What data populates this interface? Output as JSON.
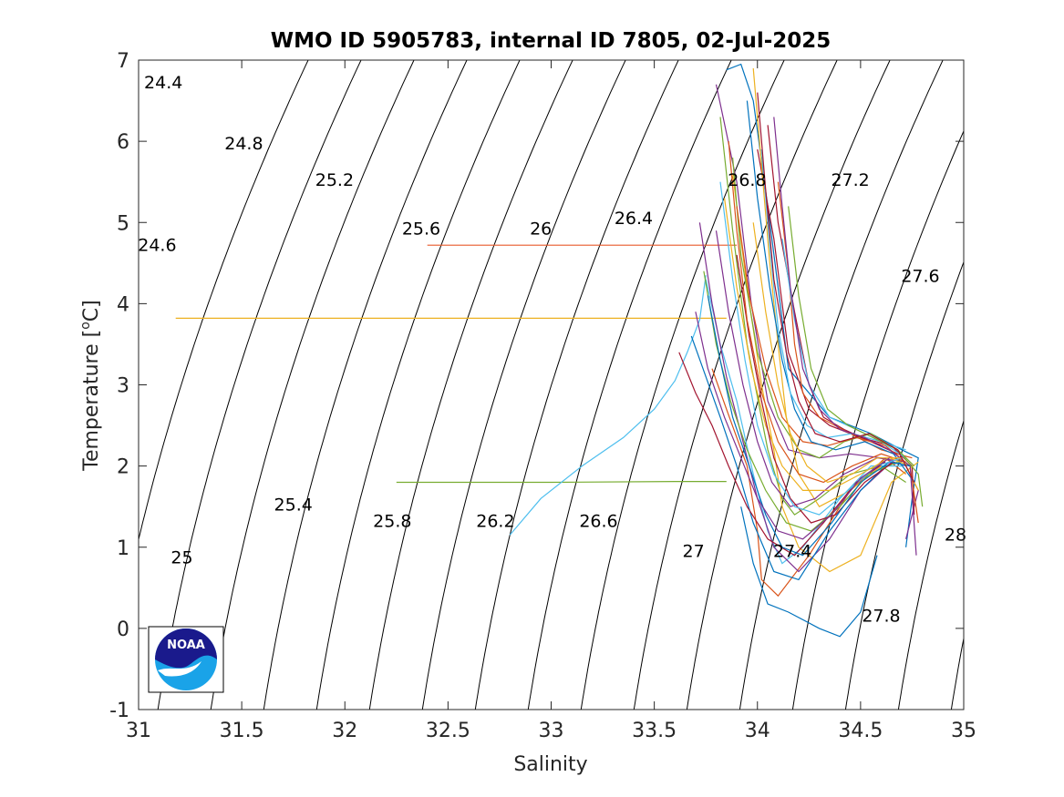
{
  "chart_data": {
    "type": "line",
    "title": "WMO ID 5905783, internal ID 7805, 02-Jul-2025",
    "xlabel": "Salinity",
    "ylabel_main": "Temperature [",
    "ylabel_sup": "o",
    "ylabel_end": "C]",
    "xlim": [
      31,
      35
    ],
    "ylim": [
      -1,
      7
    ],
    "xticks": [
      31,
      31.5,
      32,
      32.5,
      33,
      33.5,
      34,
      34.5,
      35
    ],
    "xtick_labels": [
      "31",
      "31.5",
      "32",
      "32.5",
      "33",
      "33.5",
      "34",
      "34.5",
      "35"
    ],
    "yticks": [
      -1,
      0,
      1,
      2,
      3,
      4,
      5,
      6,
      7
    ],
    "ytick_labels": [
      "-1",
      "0",
      "1",
      "2",
      "3",
      "4",
      "5",
      "6",
      "7"
    ],
    "grid": false,
    "legend": "none",
    "isopycnals": {
      "description": "sigma-theta density contours",
      "values": [
        24.4,
        24.6,
        24.8,
        25,
        25.2,
        25.4,
        25.6,
        25.8,
        26,
        26.2,
        26.4,
        26.6,
        26.8,
        27,
        27.2,
        27.4,
        27.6,
        27.8,
        28
      ],
      "label_texts": [
        "24.4",
        "24.6",
        "24.8",
        "25",
        "25.2",
        "25.4",
        "25.6",
        "25.8",
        "26",
        "26.2",
        "26.4",
        "26.6",
        "26.8",
        "27",
        "27.2",
        "27.4",
        "27.6",
        "27.8",
        "28"
      ],
      "label_points": [
        {
          "S": 31.12,
          "T": 6.65
        },
        {
          "S": 31.09,
          "T": 4.65
        },
        {
          "S": 31.51,
          "T": 5.9
        },
        {
          "S": 31.21,
          "T": 0.8
        },
        {
          "S": 31.95,
          "T": 5.45
        },
        {
          "S": 31.75,
          "T": 1.45
        },
        {
          "S": 32.37,
          "T": 4.85
        },
        {
          "S": 32.23,
          "T": 1.25
        },
        {
          "S": 32.95,
          "T": 4.85
        },
        {
          "S": 32.73,
          "T": 1.25
        },
        {
          "S": 33.4,
          "T": 4.98
        },
        {
          "S": 33.23,
          "T": 1.25
        },
        {
          "S": 33.95,
          "T": 5.45
        },
        {
          "S": 33.69,
          "T": 0.88
        },
        {
          "S": 34.45,
          "T": 5.45
        },
        {
          "S": 34.17,
          "T": 0.88
        },
        {
          "S": 34.79,
          "T": 4.27
        },
        {
          "S": 34.6,
          "T": 0.08
        },
        {
          "S": 34.96,
          "T": 1.08
        }
      ],
      "line_color": "#000000"
    },
    "series": [
      {
        "color": "#e85a2a",
        "x": [
          32.4,
          33.0,
          33.5,
          33.82,
          33.9
        ],
        "y": [
          4.72,
          4.72,
          4.72,
          4.72,
          4.72
        ]
      },
      {
        "color": "#edb120",
        "x": [
          31.18,
          32.0,
          33.0,
          33.7,
          33.85
        ],
        "y": [
          3.82,
          3.82,
          3.82,
          3.82,
          3.82
        ]
      },
      {
        "color": "#77ac30",
        "x": [
          32.25,
          33.0,
          33.6,
          33.85
        ],
        "y": [
          1.8,
          1.8,
          1.81,
          1.81
        ]
      },
      {
        "color": "#4dbeee",
        "x": [
          32.8,
          32.95,
          33.15,
          33.35,
          33.5,
          33.6,
          33.66,
          33.72,
          33.75
        ],
        "y": [
          1.15,
          1.6,
          2.0,
          2.35,
          2.7,
          3.05,
          3.4,
          3.8,
          4.35
        ]
      },
      {
        "color": "#0072bd",
        "x": [
          33.85,
          33.92,
          33.98,
          34.05,
          34.15,
          34.35,
          34.55,
          34.7,
          34.78,
          34.75,
          34.72
        ],
        "y": [
          6.88,
          6.95,
          6.5,
          5.2,
          3.2,
          2.6,
          2.4,
          2.2,
          2.1,
          1.6,
          1.0
        ]
      },
      {
        "color": "#7e2f8e",
        "x": [
          33.8,
          33.9,
          33.97,
          34.05,
          34.15,
          34.3,
          34.45,
          34.6,
          34.72,
          34.78,
          34.72
        ],
        "y": [
          6.7,
          5.5,
          4.0,
          2.8,
          2.2,
          2.1,
          2.15,
          2.1,
          2.0,
          1.7,
          1.1
        ]
      },
      {
        "color": "#a2142f",
        "x": [
          34.0,
          34.08,
          34.15,
          34.25,
          34.35,
          34.5,
          34.65,
          34.75,
          34.76
        ],
        "y": [
          5.9,
          4.8,
          3.4,
          2.7,
          2.5,
          2.35,
          2.25,
          2.0,
          1.4
        ]
      },
      {
        "color": "#d95319",
        "x": [
          33.78,
          33.85,
          33.95,
          34.0,
          34.02,
          34.1,
          34.25,
          34.45,
          34.62,
          34.72
        ],
        "y": [
          3.2,
          2.7,
          2.0,
          1.2,
          0.6,
          0.4,
          0.9,
          1.7,
          2.1,
          1.9
        ]
      },
      {
        "color": "#0072bd",
        "x": [
          33.92,
          33.98,
          34.05,
          34.15,
          34.3,
          34.4,
          34.5,
          34.58
        ],
        "y": [
          1.5,
          0.8,
          0.3,
          0.2,
          0.0,
          -0.1,
          0.2,
          0.9
        ]
      },
      {
        "color": "#77ac30",
        "x": [
          33.82,
          33.88,
          33.95,
          34.05,
          34.12,
          34.18,
          34.3,
          34.45,
          34.6,
          34.72
        ],
        "y": [
          6.3,
          4.9,
          3.5,
          2.2,
          1.6,
          1.4,
          1.6,
          1.9,
          2.0,
          1.8
        ]
      },
      {
        "color": "#4dbeee",
        "x": [
          33.75,
          33.82,
          33.9,
          33.98,
          34.05,
          34.12,
          34.22,
          34.4,
          34.55,
          34.7
        ],
        "y": [
          4.3,
          3.5,
          2.8,
          1.9,
          1.2,
          0.8,
          1.0,
          1.6,
          2.0,
          2.0
        ]
      },
      {
        "color": "#edb120",
        "x": [
          33.88,
          33.95,
          34.02,
          34.08,
          34.12,
          34.2,
          34.35,
          34.5,
          34.65,
          34.78
        ],
        "y": [
          5.6,
          4.2,
          3.0,
          2.2,
          1.5,
          1.0,
          0.7,
          0.9,
          1.8,
          2.05
        ]
      },
      {
        "color": "#7e2f8e",
        "x": [
          33.72,
          33.78,
          33.85,
          33.92,
          34.0,
          34.08,
          34.2,
          34.35,
          34.5,
          34.65
        ],
        "y": [
          5.0,
          4.0,
          3.1,
          2.4,
          1.6,
          1.0,
          0.7,
          1.1,
          1.7,
          2.05
        ]
      },
      {
        "color": "#a2142f",
        "x": [
          34.05,
          34.1,
          34.18,
          34.25,
          34.32,
          34.42,
          34.55,
          34.68
        ],
        "y": [
          6.2,
          5.0,
          3.9,
          3.0,
          2.6,
          2.45,
          2.3,
          2.15
        ]
      },
      {
        "color": "#d95319",
        "x": [
          34.1,
          34.15,
          34.18,
          34.22,
          34.3,
          34.45,
          34.6,
          34.75
        ],
        "y": [
          5.5,
          4.4,
          3.5,
          2.9,
          2.6,
          2.4,
          2.2,
          2.1
        ]
      },
      {
        "color": "#0072bd",
        "x": [
          33.68,
          33.75,
          33.82,
          33.9,
          33.98,
          34.08,
          34.2,
          34.35,
          34.5,
          34.62,
          34.7
        ],
        "y": [
          3.6,
          3.1,
          2.6,
          2.0,
          1.3,
          0.7,
          0.6,
          1.2,
          1.7,
          2.0,
          2.05
        ]
      },
      {
        "color": "#77ac30",
        "x": [
          33.88,
          33.92,
          34.0,
          34.1,
          34.2,
          34.3,
          34.42,
          34.55,
          34.68,
          34.78,
          34.8
        ],
        "y": [
          5.8,
          4.6,
          3.4,
          2.6,
          2.2,
          2.1,
          2.3,
          2.4,
          2.2,
          1.9,
          1.5
        ]
      },
      {
        "color": "#4dbeee",
        "x": [
          34.12,
          34.18,
          34.25,
          34.35,
          34.48,
          34.6,
          34.72
        ],
        "y": [
          4.8,
          3.8,
          3.0,
          2.6,
          2.45,
          2.3,
          2.2
        ]
      },
      {
        "color": "#edb120",
        "x": [
          33.98,
          34.02,
          34.06,
          34.1,
          34.14,
          34.2,
          34.3,
          34.45,
          34.6
        ],
        "y": [
          6.9,
          5.7,
          4.5,
          3.5,
          2.6,
          1.9,
          1.5,
          1.7,
          2.0
        ]
      },
      {
        "color": "#7e2f8e",
        "x": [
          33.8,
          33.86,
          33.93,
          34.0,
          34.07,
          34.16,
          34.28,
          34.42,
          34.58,
          34.72
        ],
        "y": [
          4.9,
          3.9,
          3.0,
          2.3,
          1.8,
          1.5,
          1.6,
          1.9,
          2.1,
          2.05
        ]
      },
      {
        "color": "#a2142f",
        "x": [
          33.62,
          33.7,
          33.78,
          33.86,
          33.95,
          34.05,
          34.18,
          34.32,
          34.48,
          34.62
        ],
        "y": [
          3.4,
          2.9,
          2.5,
          2.0,
          1.5,
          1.1,
          0.9,
          1.3,
          1.8,
          2.05
        ]
      },
      {
        "color": "#d95319",
        "x": [
          33.9,
          33.96,
          34.04,
          34.12,
          34.22,
          34.34,
          34.48,
          34.62,
          34.74,
          34.78
        ],
        "y": [
          5.2,
          4.1,
          3.2,
          2.6,
          2.3,
          2.25,
          2.35,
          2.25,
          2.0,
          1.3
        ]
      },
      {
        "color": "#0072bd",
        "x": [
          33.95,
          34.0,
          34.06,
          34.12,
          34.18,
          34.26,
          34.38,
          34.52,
          34.66,
          34.76
        ],
        "y": [
          6.5,
          5.3,
          4.2,
          3.3,
          2.7,
          2.3,
          2.2,
          2.3,
          2.15,
          1.8
        ]
      },
      {
        "color": "#77ac30",
        "x": [
          33.74,
          33.8,
          33.87,
          33.95,
          34.04,
          34.14,
          34.26,
          34.4,
          34.54,
          34.68
        ],
        "y": [
          4.4,
          3.5,
          2.8,
          2.2,
          1.7,
          1.3,
          1.2,
          1.5,
          1.9,
          2.05
        ]
      },
      {
        "color": "#4dbeee",
        "x": [
          34.02,
          34.06,
          34.1,
          34.16,
          34.24,
          34.34,
          34.46,
          34.6,
          34.72
        ],
        "y": [
          5.9,
          4.7,
          3.7,
          2.9,
          2.5,
          2.35,
          2.4,
          2.3,
          2.1
        ]
      },
      {
        "color": "#edb120",
        "x": [
          33.84,
          33.9,
          33.97,
          34.04,
          34.12,
          34.22,
          34.35,
          34.5,
          34.64,
          34.74
        ],
        "y": [
          5.3,
          4.2,
          3.2,
          2.5,
          2.0,
          1.7,
          1.7,
          1.9,
          2.1,
          2.0
        ]
      },
      {
        "color": "#7e2f8e",
        "x": [
          34.08,
          34.12,
          34.16,
          34.22,
          34.3,
          34.4,
          34.52,
          34.64,
          34.74,
          34.77
        ],
        "y": [
          6.3,
          5.2,
          4.2,
          3.2,
          2.7,
          2.45,
          2.35,
          2.2,
          2.0,
          0.9
        ]
      },
      {
        "color": "#a2142f",
        "x": [
          33.9,
          33.96,
          34.02,
          34.08,
          34.16,
          34.26,
          34.38,
          34.52,
          34.66
        ],
        "y": [
          4.6,
          3.6,
          2.8,
          2.1,
          1.6,
          1.3,
          1.4,
          1.8,
          2.05
        ]
      },
      {
        "color": "#d95319",
        "x": [
          33.86,
          33.9,
          33.95,
          34.02,
          34.1,
          34.2,
          34.32,
          34.46,
          34.6,
          34.72
        ],
        "y": [
          6.0,
          4.9,
          3.8,
          2.9,
          2.3,
          1.9,
          1.8,
          2.0,
          2.15,
          2.05
        ]
      },
      {
        "color": "#0072bd",
        "x": [
          33.76,
          33.82,
          33.88,
          33.96,
          34.04,
          34.12,
          34.22,
          34.36,
          34.5,
          34.64,
          34.74
        ],
        "y": [
          4.1,
          3.3,
          2.6,
          2.0,
          1.4,
          1.0,
          0.9,
          1.3,
          1.8,
          2.05,
          2.0
        ]
      },
      {
        "color": "#77ac30",
        "x": [
          34.15,
          34.2,
          34.26,
          34.34,
          34.44,
          34.56,
          34.68,
          34.76
        ],
        "y": [
          5.2,
          4.1,
          3.2,
          2.7,
          2.5,
          2.35,
          2.2,
          2.0
        ]
      },
      {
        "color": "#4dbeee",
        "x": [
          33.82,
          33.88,
          33.94,
          34.0,
          34.08,
          34.18,
          34.3,
          34.44,
          34.58,
          34.7
        ],
        "y": [
          5.5,
          4.3,
          3.3,
          2.5,
          1.9,
          1.5,
          1.4,
          1.7,
          2.0,
          2.1
        ]
      },
      {
        "color": "#edb120",
        "x": [
          33.98,
          34.04,
          34.1,
          34.16,
          34.24,
          34.34,
          34.46,
          34.58,
          34.7,
          34.78
        ],
        "y": [
          5.0,
          3.9,
          3.0,
          2.4,
          2.0,
          1.8,
          1.9,
          2.1,
          2.1,
          1.7
        ]
      },
      {
        "color": "#7e2f8e",
        "x": [
          33.7,
          33.76,
          33.84,
          33.92,
          34.0,
          34.1,
          34.22,
          34.36,
          34.5,
          34.64
        ],
        "y": [
          3.9,
          3.2,
          2.6,
          2.1,
          1.6,
          1.2,
          1.1,
          1.4,
          1.85,
          2.1
        ]
      },
      {
        "color": "#a2142f",
        "x": [
          34.0,
          34.04,
          34.08,
          34.14,
          34.2,
          34.28,
          34.4,
          34.54,
          34.68,
          34.76
        ],
        "y": [
          6.6,
          5.4,
          4.3,
          3.4,
          2.8,
          2.4,
          2.3,
          2.4,
          2.2,
          1.8
        ]
      }
    ]
  },
  "logo": {
    "text": "NOAA",
    "colors": {
      "top": "#1a1a8c",
      "bottom": "#1aa3e8",
      "border": "#000000"
    }
  }
}
